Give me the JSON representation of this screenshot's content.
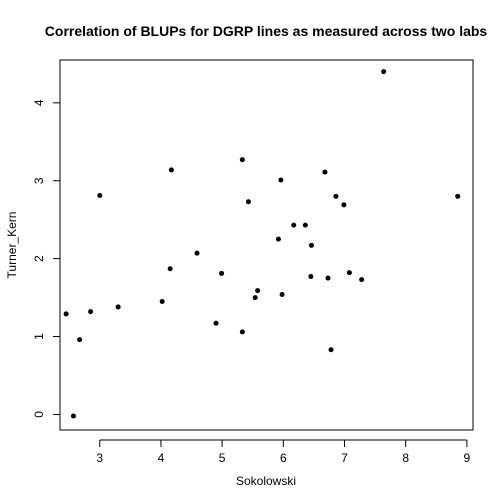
{
  "chart_data": {
    "type": "scatter",
    "title": "Correlation of BLUPs for DGRP lines as measured across two labs",
    "xlabel": "Sokolowski",
    "ylabel": "Turner_Kern",
    "xlim": [
      2.35,
      9.1
    ],
    "ylim": [
      -0.2,
      4.55
    ],
    "xticks": [
      3,
      4,
      5,
      6,
      7,
      8,
      9
    ],
    "yticks": [
      0,
      1,
      2,
      3,
      4
    ],
    "grid": false,
    "marker": "filled-circle",
    "points": [
      {
        "x": 2.45,
        "y": 1.29
      },
      {
        "x": 2.57,
        "y": -0.02
      },
      {
        "x": 2.67,
        "y": 0.96
      },
      {
        "x": 2.85,
        "y": 1.32
      },
      {
        "x": 3.0,
        "y": 2.81
      },
      {
        "x": 3.3,
        "y": 1.38
      },
      {
        "x": 4.02,
        "y": 1.45
      },
      {
        "x": 4.15,
        "y": 1.87
      },
      {
        "x": 4.17,
        "y": 3.14
      },
      {
        "x": 4.59,
        "y": 2.07
      },
      {
        "x": 4.9,
        "y": 1.17
      },
      {
        "x": 4.99,
        "y": 1.81
      },
      {
        "x": 5.33,
        "y": 1.06
      },
      {
        "x": 5.33,
        "y": 3.27
      },
      {
        "x": 5.43,
        "y": 2.73
      },
      {
        "x": 5.54,
        "y": 1.5
      },
      {
        "x": 5.58,
        "y": 1.59
      },
      {
        "x": 5.92,
        "y": 2.25
      },
      {
        "x": 5.96,
        "y": 3.01
      },
      {
        "x": 5.98,
        "y": 1.54
      },
      {
        "x": 6.17,
        "y": 2.43
      },
      {
        "x": 6.36,
        "y": 2.43
      },
      {
        "x": 6.45,
        "y": 1.77
      },
      {
        "x": 6.46,
        "y": 2.17
      },
      {
        "x": 6.68,
        "y": 3.11
      },
      {
        "x": 6.73,
        "y": 1.75
      },
      {
        "x": 6.78,
        "y": 0.83
      },
      {
        "x": 6.86,
        "y": 2.8
      },
      {
        "x": 6.99,
        "y": 2.69
      },
      {
        "x": 7.08,
        "y": 1.82
      },
      {
        "x": 7.28,
        "y": 1.73
      },
      {
        "x": 7.64,
        "y": 4.4
      },
      {
        "x": 8.85,
        "y": 2.8
      }
    ]
  }
}
